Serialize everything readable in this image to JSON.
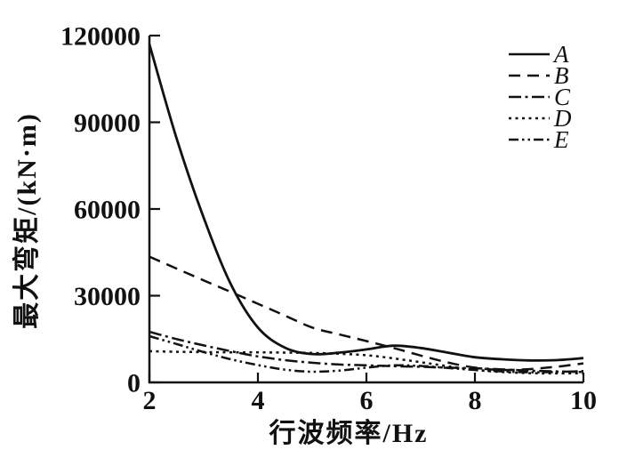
{
  "figure": {
    "background": "#ffffff",
    "axis_color": "#111111"
  },
  "chart_data": {
    "type": "line",
    "title": "",
    "xlabel": "行波频率/Hz",
    "ylabel": "最大弯矩/(kN·m)",
    "xlim": [
      2,
      10
    ],
    "ylim": [
      0,
      120000
    ],
    "xticks": [
      2,
      4,
      6,
      8,
      10
    ],
    "yticks": [
      0,
      30000,
      60000,
      90000,
      120000
    ],
    "grid": false,
    "legend_position": "top-right",
    "line_color": "#111111",
    "x": [
      2,
      2.5,
      3,
      3.5,
      4,
      4.5,
      5,
      5.5,
      6,
      6.5,
      7,
      7.5,
      8,
      8.5,
      9,
      9.5,
      10
    ],
    "series": [
      {
        "name": "A",
        "style": "solid",
        "values": [
          117000,
          84500,
          57000,
          34000,
          19000,
          12000,
          9800,
          10300,
          11400,
          12700,
          11900,
          10300,
          8700,
          8000,
          7600,
          7700,
          8400
        ]
      },
      {
        "name": "B",
        "style": "dashed",
        "values": [
          43500,
          39400,
          35300,
          31300,
          27200,
          23100,
          19000,
          16600,
          14300,
          11900,
          9300,
          6900,
          5100,
          4300,
          4600,
          5400,
          6600
        ]
      },
      {
        "name": "C",
        "style": "dash-dot",
        "values": [
          17500,
          15000,
          12800,
          10800,
          9000,
          7700,
          6800,
          6200,
          5900,
          5600,
          5400,
          5100,
          4900,
          4500,
          4100,
          3800,
          3600
        ]
      },
      {
        "name": "D",
        "style": "dotted",
        "values": [
          10800,
          10600,
          10500,
          10400,
          10400,
          10300,
          10200,
          9900,
          9400,
          8300,
          7000,
          5600,
          4300,
          3600,
          3200,
          3100,
          3200
        ]
      },
      {
        "name": "E",
        "style": "dash-dot-dot",
        "values": [
          16000,
          13300,
          10500,
          8000,
          6000,
          4400,
          3700,
          4100,
          5100,
          5900,
          5700,
          5000,
          4300,
          3800,
          3500,
          3600,
          3900
        ]
      }
    ]
  }
}
